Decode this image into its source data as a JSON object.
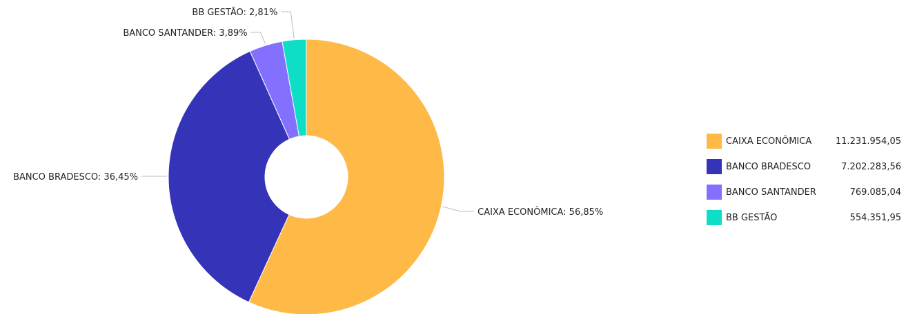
{
  "chart_data": {
    "type": "pie",
    "donut": true,
    "legend_position": "right",
    "slices": [
      {
        "name": "CAIXA ECONÔMICA",
        "value": 11231954.05,
        "display_value": "11.231.954,05",
        "percent": 56.85,
        "label": "CAIXA ECONÔMICA: 56,85%",
        "color": "#FFB946"
      },
      {
        "name": "BANCO BRADESCO",
        "value": 7202283.56,
        "display_value": "7.202.283,56",
        "percent": 36.45,
        "label": "BANCO BRADESCO: 36,45%",
        "color": "#3533B7"
      },
      {
        "name": "BANCO SANTANDER",
        "value": 769085.04,
        "display_value": "769.085,04",
        "percent": 3.89,
        "label": "BANCO SANTANDER: 3,89%",
        "color": "#8370FF"
      },
      {
        "name": "BB GESTÃO",
        "value": 554351.95,
        "display_value": "554.351,95",
        "percent": 2.81,
        "label": "BB GESTÃO: 2,81%",
        "color": "#0FDEC7"
      }
    ]
  }
}
